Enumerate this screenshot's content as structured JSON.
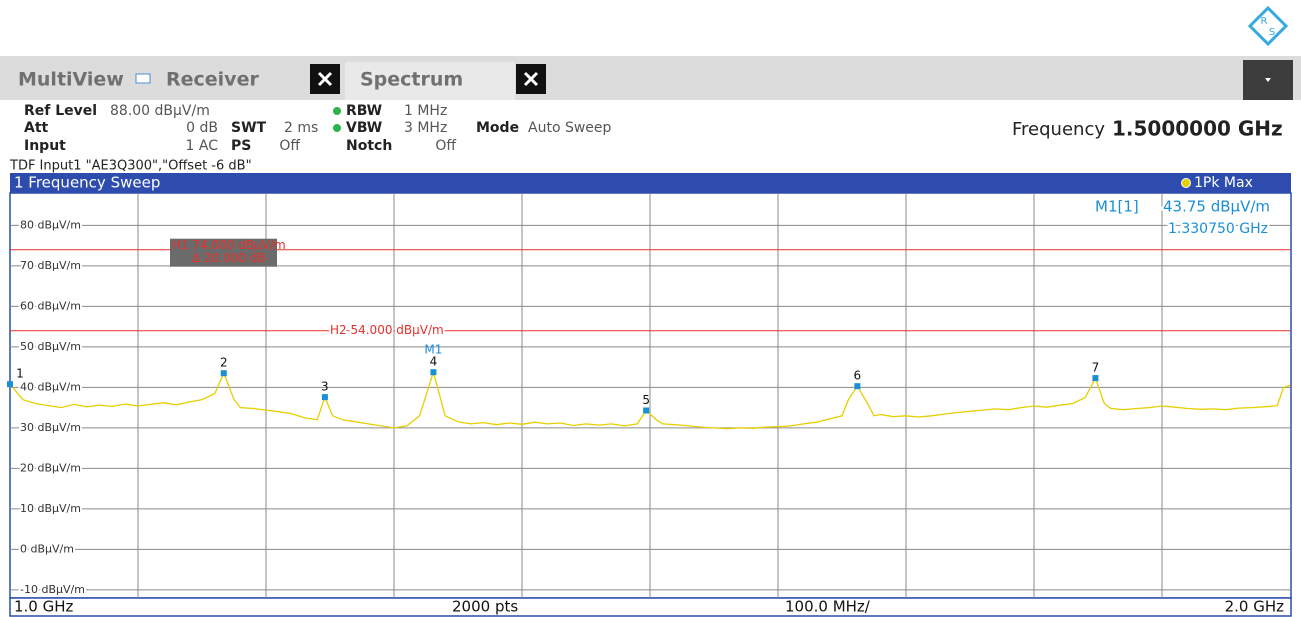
{
  "logo": [
    "R",
    "S"
  ],
  "tabs": [
    "MultiView",
    "Receiver",
    "Spectrum"
  ],
  "settings": [
    {
      "label": "Ref Level",
      "value": "88.00 dBµV/m"
    },
    {
      "label": "Att",
      "value": "0 dB"
    },
    {
      "label": "Input",
      "value": "1 AC"
    },
    {
      "label": "SWT",
      "value": "2 ms"
    },
    {
      "label": "PS",
      "value": "Off"
    },
    {
      "label": "RBW",
      "value": "1 MHz"
    },
    {
      "label": "VBW",
      "value": "3 MHz"
    },
    {
      "label": "Notch",
      "value": "Off"
    },
    {
      "label": "Mode",
      "value": "Auto Sweep"
    }
  ],
  "frequency": {
    "label": "Frequency",
    "value": "1.5000000 GHz"
  },
  "tdf": "TDF Input1 \"AE3Q300\",\"Offset -6 dB\"",
  "chart_data": {
    "type": "line",
    "title": "1 Frequency Sweep",
    "ylim": [
      -12,
      88
    ],
    "yticks": [
      {
        "value": 80,
        "label": "80 dBµV/m"
      },
      {
        "value": 70,
        "label": "70 dBµV/m"
      },
      {
        "value": 60,
        "label": "60 dBµV/m"
      },
      {
        "value": 50,
        "label": "50 dBµV/m"
      },
      {
        "value": 40,
        "label": "40 dBµV/m"
      },
      {
        "value": 30,
        "label": "30 dBµV/m"
      },
      {
        "value": 20,
        "label": "20 dBµV/m"
      },
      {
        "value": 10,
        "label": "10 dBµV/m"
      },
      {
        "value": 0,
        "label": "0 dBµV/m"
      },
      {
        "value": -10,
        "label": "-10 dBµV/m"
      }
    ],
    "xlim": [
      1.0,
      2.0
    ],
    "x_grid": [
      1.1,
      1.2,
      1.3,
      1.4,
      1.5,
      1.6,
      1.7,
      1.8,
      1.9
    ],
    "grid": true,
    "x_start_label": "1.0 GHz",
    "points_label": "2000 pts",
    "span_label": "100.0 MHz/",
    "x_stop_label": "2.0 GHz",
    "x": [
      1.0,
      1.01,
      1.02,
      1.03,
      1.04,
      1.05,
      1.06,
      1.07,
      1.08,
      1.09,
      1.1,
      1.11,
      1.12,
      1.13,
      1.14,
      1.15,
      1.16,
      1.167,
      1.175,
      1.18,
      1.19,
      1.2,
      1.21,
      1.22,
      1.23,
      1.24,
      1.246,
      1.252,
      1.26,
      1.27,
      1.28,
      1.29,
      1.3,
      1.31,
      1.32,
      1.3308,
      1.34,
      1.35,
      1.36,
      1.37,
      1.38,
      1.39,
      1.4,
      1.41,
      1.42,
      1.43,
      1.44,
      1.45,
      1.46,
      1.47,
      1.48,
      1.49,
      1.497,
      1.505,
      1.51,
      1.52,
      1.53,
      1.54,
      1.55,
      1.56,
      1.57,
      1.58,
      1.59,
      1.6,
      1.61,
      1.62,
      1.63,
      1.64,
      1.65,
      1.655,
      1.662,
      1.67,
      1.675,
      1.68,
      1.69,
      1.7,
      1.71,
      1.72,
      1.73,
      1.74,
      1.75,
      1.76,
      1.77,
      1.78,
      1.79,
      1.8,
      1.81,
      1.82,
      1.83,
      1.84,
      1.848,
      1.855,
      1.86,
      1.87,
      1.88,
      1.89,
      1.9,
      1.91,
      1.92,
      1.93,
      1.94,
      1.95,
      1.96,
      1.97,
      1.98,
      1.99,
      1.995,
      2.0
    ],
    "series": [
      {
        "name": "1Pk Max",
        "color": "#e6cf00",
        "values": [
          40.8,
          37,
          36,
          35.5,
          35,
          35.8,
          35.2,
          35.6,
          35.3,
          35.9,
          35.4,
          35.8,
          36.2,
          35.7,
          36.4,
          37,
          38.5,
          43.5,
          37,
          35,
          34.8,
          34.4,
          34,
          33.5,
          32.5,
          32,
          37.6,
          33,
          32,
          31.5,
          31,
          30.5,
          30,
          30.5,
          33,
          43.75,
          33,
          31.5,
          31,
          31.3,
          30.8,
          31.2,
          30.9,
          31.4,
          31,
          31.2,
          30.6,
          31,
          30.7,
          31,
          30.5,
          31,
          34.3,
          32,
          31,
          30.8,
          30.5,
          30.2,
          30,
          29.8,
          30,
          29.9,
          30.2,
          30.3,
          30.5,
          31,
          31.4,
          32.2,
          33,
          37,
          40.3,
          36,
          33,
          33.3,
          32.8,
          33,
          32.7,
          33,
          33.4,
          33.8,
          34.1,
          34.4,
          34.7,
          34.5,
          35,
          35.4,
          35.1,
          35.6,
          36,
          37.5,
          42.3,
          36,
          34.8,
          34.5,
          34.8,
          35,
          35.4,
          35.1,
          34.8,
          34.6,
          34.7,
          34.5,
          34.9,
          35,
          35.2,
          35.5,
          40,
          40.5
        ]
      }
    ],
    "limit_lines": [
      {
        "value": 74,
        "label": "H1 74.000 dBµV/m",
        "sublabel": "Δ 20.000 dB",
        "color": "#e8302a"
      },
      {
        "value": 54,
        "label": "H2 54.000 dBµV/m",
        "color": "#e8302a"
      }
    ],
    "markers": [
      {
        "label": "1",
        "x": 1.0,
        "y": 40.8
      },
      {
        "label": "2",
        "x": 1.167,
        "y": 43.5
      },
      {
        "label": "3",
        "x": 1.246,
        "y": 37.6
      },
      {
        "label": "4",
        "tag": "M1",
        "x": 1.3308,
        "y": 43.75
      },
      {
        "label": "5",
        "x": 1.497,
        "y": 34.3
      },
      {
        "label": "6",
        "x": 1.662,
        "y": 40.3
      },
      {
        "label": "7",
        "x": 1.848,
        "y": 42.3
      }
    ],
    "marker_readout": {
      "name": "M1[1]",
      "level": "43.75 dBµV/m",
      "frequency": "1.330750 GHz"
    }
  }
}
